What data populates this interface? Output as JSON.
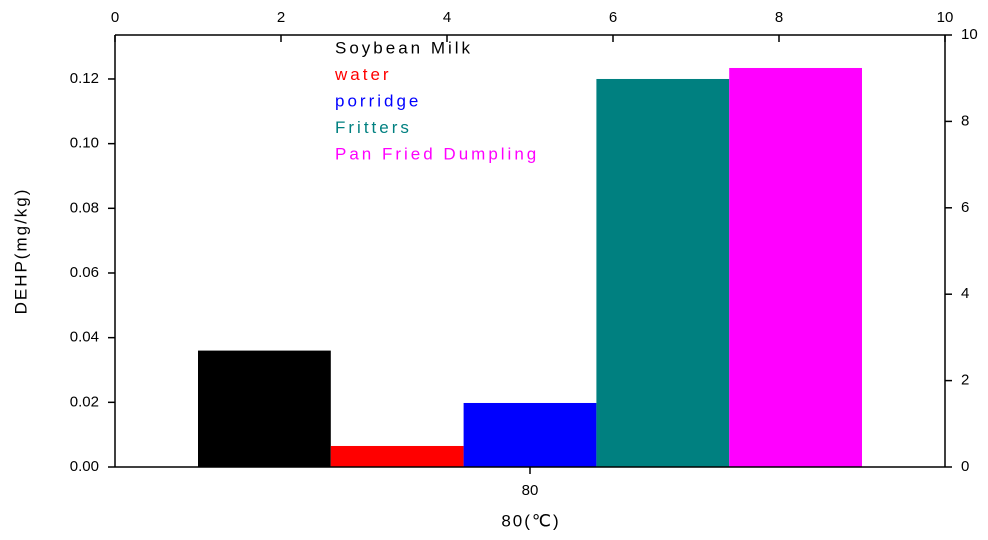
{
  "chart_data": {
    "type": "bar",
    "categories": [
      "80"
    ],
    "xlabel": "80(℃)",
    "ylabel": "DEHP(mg/kg)",
    "series": [
      {
        "name": "Soybean Milk",
        "color": "#000000",
        "values": [
          0.036
        ]
      },
      {
        "name": "water",
        "color": "#ff0000",
        "values": [
          0.0065
        ]
      },
      {
        "name": "porridge",
        "color": "#0000ff",
        "values": [
          0.0198
        ]
      },
      {
        "name": "Fritters",
        "color": "#008080",
        "values": [
          0.12
        ]
      },
      {
        "name": "Pan Fried Dumpling",
        "color": "#ff00ff",
        "values": [
          0.1234
        ]
      }
    ],
    "ylim": [
      0,
      0.1336
    ],
    "yticks": [
      {
        "value": 0,
        "label": "0.00"
      },
      0.02,
      0.04,
      0.06,
      0.08,
      {
        "value": 0.1,
        "label": "0.10"
      },
      0.12
    ],
    "y2lim": [
      0,
      10
    ],
    "y2ticks": [
      0,
      2,
      4,
      6,
      8,
      10
    ],
    "x2lim": [
      0,
      10
    ],
    "x2ticks": [
      0,
      2,
      4,
      6,
      8,
      10
    ],
    "grid": false,
    "legend": "top"
  }
}
